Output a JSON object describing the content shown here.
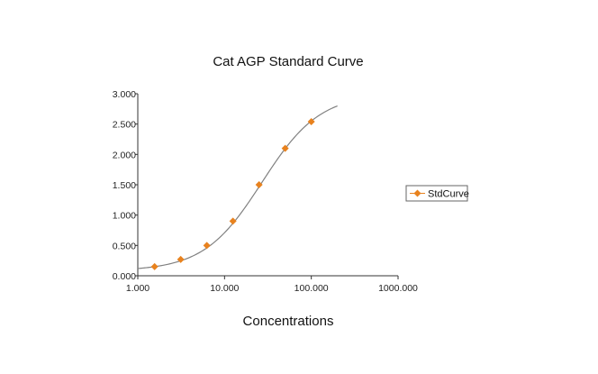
{
  "chart_data": {
    "type": "scatter",
    "title": "Cat AGP Standard Curve",
    "xlabel": "Concentrations",
    "ylabel": "",
    "xscale": "log",
    "xlim": [
      1,
      1000
    ],
    "ylim": [
      0,
      3
    ],
    "xticks": [
      1,
      10,
      100,
      1000
    ],
    "xtick_labels": [
      "1.000",
      "10.000",
      "100.000",
      "1000.000"
    ],
    "yticks": [
      0,
      0.5,
      1,
      1.5,
      2,
      2.5,
      3
    ],
    "ytick_labels": [
      "0.000",
      "0.500",
      "1.000",
      "1.500",
      "2.000",
      "2.500",
      "3.000"
    ],
    "grid": false,
    "legend_position": "right",
    "series": [
      {
        "name": "StdCurve",
        "color": "#E8821E",
        "marker": "diamond",
        "x": [
          1.5625,
          3.125,
          6.25,
          12.5,
          25,
          50,
          100
        ],
        "y": [
          0.15,
          0.27,
          0.5,
          0.9,
          1.5,
          2.1,
          2.54
        ]
      }
    ],
    "fit_curve": {
      "model": "4PL",
      "color": "#808080",
      "a": 0.08,
      "d": 3.0,
      "c": 27,
      "b": 1.3,
      "x_range": [
        1,
        200
      ]
    }
  }
}
